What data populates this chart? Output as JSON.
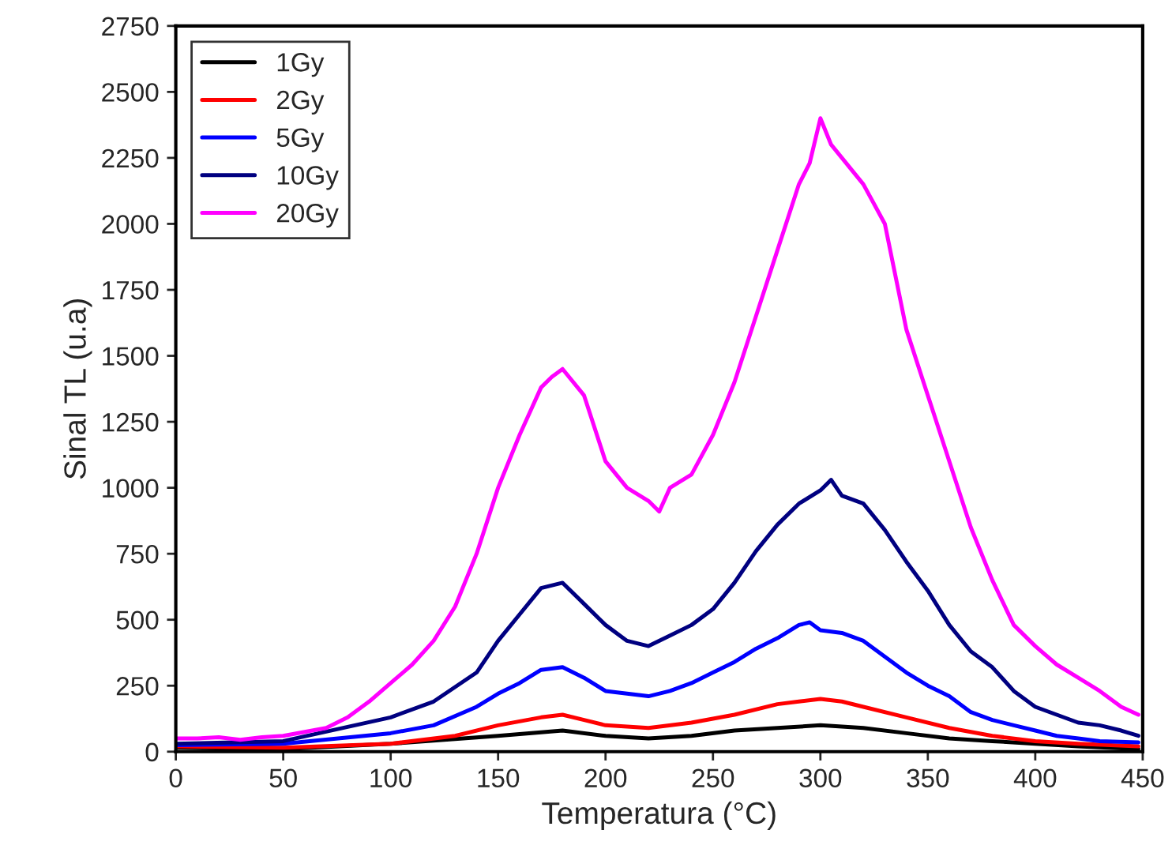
{
  "chart_data": {
    "type": "line",
    "xlabel": "Temperatura (°C)",
    "ylabel": "Sinal TL (u.a)",
    "xlim": [
      0,
      450
    ],
    "xticks": [
      0,
      50,
      100,
      150,
      200,
      250,
      300,
      350,
      400,
      450
    ],
    "ylim": [
      0,
      2750
    ],
    "yticks": [
      0,
      250,
      500,
      750,
      1000,
      1250,
      1500,
      1750,
      2000,
      2250,
      2500,
      2750
    ],
    "grid": false,
    "legend": "top left",
    "marker": "none",
    "line_style": "solid",
    "series": [
      {
        "name": "1Gy",
        "color": "#000000",
        "x": [
          0,
          50,
          100,
          150,
          180,
          200,
          220,
          240,
          260,
          280,
          300,
          320,
          340,
          360,
          380,
          400,
          420,
          448
        ],
        "values": [
          15,
          10,
          30,
          60,
          80,
          60,
          50,
          60,
          80,
          90,
          100,
          90,
          70,
          50,
          40,
          30,
          20,
          10
        ]
      },
      {
        "name": "2Gy",
        "color": "#ff0000",
        "x": [
          0,
          50,
          100,
          130,
          150,
          170,
          180,
          190,
          200,
          220,
          240,
          260,
          280,
          290,
          300,
          310,
          320,
          340,
          360,
          380,
          400,
          420,
          448
        ],
        "values": [
          20,
          15,
          30,
          60,
          100,
          130,
          140,
          120,
          100,
          90,
          110,
          140,
          180,
          190,
          200,
          190,
          170,
          130,
          90,
          60,
          40,
          30,
          20
        ]
      },
      {
        "name": "5Gy",
        "color": "#0000ff",
        "x": [
          0,
          50,
          100,
          120,
          140,
          150,
          160,
          170,
          180,
          190,
          200,
          210,
          220,
          230,
          240,
          250,
          260,
          270,
          280,
          290,
          295,
          300,
          310,
          320,
          330,
          340,
          350,
          360,
          370,
          380,
          390,
          400,
          410,
          420,
          430,
          448
        ],
        "values": [
          25,
          30,
          70,
          100,
          170,
          220,
          260,
          310,
          320,
          280,
          230,
          220,
          210,
          230,
          260,
          300,
          340,
          390,
          430,
          480,
          490,
          460,
          450,
          420,
          360,
          300,
          250,
          210,
          150,
          120,
          100,
          80,
          60,
          50,
          40,
          35
        ]
      },
      {
        "name": "10Gy",
        "color": "#000080",
        "x": [
          0,
          50,
          100,
          120,
          140,
          150,
          160,
          170,
          180,
          190,
          200,
          210,
          220,
          230,
          240,
          250,
          260,
          270,
          280,
          290,
          300,
          305,
          310,
          320,
          330,
          340,
          350,
          360,
          370,
          380,
          390,
          400,
          410,
          420,
          430,
          440,
          448
        ],
        "values": [
          30,
          40,
          130,
          190,
          300,
          420,
          520,
          620,
          640,
          560,
          480,
          420,
          400,
          440,
          480,
          540,
          640,
          760,
          860,
          940,
          990,
          1030,
          970,
          940,
          840,
          720,
          610,
          480,
          380,
          320,
          230,
          170,
          140,
          110,
          100,
          80,
          60
        ]
      },
      {
        "name": "20Gy",
        "color": "#ff00ff",
        "x": [
          0,
          10,
          20,
          30,
          40,
          50,
          60,
          70,
          80,
          90,
          100,
          110,
          120,
          130,
          140,
          150,
          160,
          170,
          175,
          180,
          190,
          200,
          210,
          220,
          225,
          230,
          240,
          250,
          260,
          270,
          280,
          290,
          295,
          300,
          305,
          310,
          320,
          330,
          335,
          340,
          350,
          360,
          370,
          380,
          390,
          400,
          410,
          420,
          430,
          440,
          448
        ],
        "values": [
          50,
          50,
          55,
          45,
          55,
          60,
          75,
          90,
          130,
          190,
          260,
          330,
          420,
          550,
          750,
          1000,
          1200,
          1380,
          1420,
          1450,
          1350,
          1100,
          1000,
          950,
          910,
          1000,
          1050,
          1200,
          1400,
          1650,
          1900,
          2150,
          2230,
          2400,
          2300,
          2250,
          2150,
          2000,
          1800,
          1600,
          1350,
          1100,
          850,
          650,
          480,
          400,
          330,
          280,
          230,
          170,
          140
        ]
      }
    ]
  }
}
